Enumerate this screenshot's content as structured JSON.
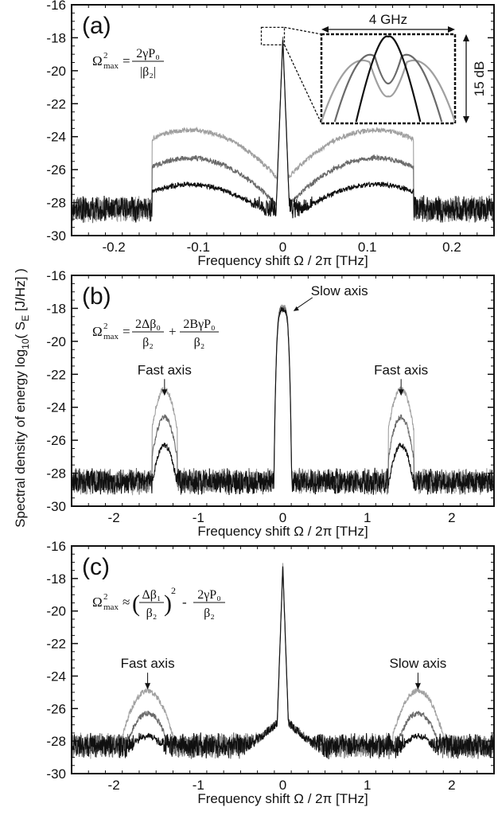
{
  "figure": {
    "ylabel_prefix": "Spectral density of energy log",
    "ylabel_sub": "10",
    "ylabel_open": "( S",
    "ylabel_sub2": "E",
    "ylabel_close": " [J/Hz] )"
  },
  "chart_data": [
    {
      "type": "line",
      "panel": "(a)",
      "xlabel": "Frequency shift Ω / 2π [THz]",
      "xlim": [
        -0.25,
        0.25
      ],
      "ylim": [
        -30,
        -16
      ],
      "xticks": [
        "-0.2",
        "-0.1",
        "0",
        "0.1",
        "0.2"
      ],
      "xtick_values": [
        -0.2,
        -0.1,
        0,
        0.1,
        0.2
      ],
      "yticks": [
        "-16",
        "-18",
        "-20",
        "-22",
        "-24",
        "-26",
        "-28",
        "-30"
      ],
      "grid": false,
      "formula": {
        "lhs": "Ω",
        "sup": "2",
        "sub": "max",
        "rel": "=",
        "terms": [
          {
            "num": "2γP₀",
            "den": "|β₂|"
          }
        ]
      },
      "series": [
        {
          "color": "#a0a0a0",
          "lobe_peak": -23.6,
          "lobe_center": 0.11,
          "lobe_width": 0.045,
          "cut": 0.155
        },
        {
          "color": "#6a6a6a",
          "lobe_peak": -25.3,
          "lobe_center": 0.11,
          "lobe_width": 0.045,
          "cut": 0.155
        },
        {
          "color": "#101010",
          "lobe_peak": -26.9,
          "lobe_center": 0.11,
          "lobe_width": 0.05,
          "cut": 0.155
        }
      ],
      "noise_floor": -28.4,
      "center_peak": -17.9,
      "center_width": 0.002,
      "inset": {
        "width_label": "4 GHz",
        "height_label": "15 dB"
      }
    },
    {
      "type": "line",
      "panel": "(b)",
      "xlabel": "Frequency shift Ω / 2π [THz]",
      "xlim": [
        -2.5,
        2.5
      ],
      "ylim": [
        -30,
        -16
      ],
      "xticks": [
        "-2",
        "-1",
        "0",
        "1",
        "2"
      ],
      "xtick_values": [
        -2,
        -1,
        0,
        1,
        2
      ],
      "yticks": [
        "-16",
        "-18",
        "-20",
        "-22",
        "-24",
        "-26",
        "-28",
        "-30"
      ],
      "grid": false,
      "formula": {
        "lhs": "Ω",
        "sup": "2",
        "sub": "max",
        "rel": "=",
        "terms": [
          {
            "num": "2Δβ₀",
            "den": "β₂"
          },
          {
            "op": "+",
            "num": "2BγP₀",
            "den": "β₂"
          }
        ]
      },
      "annotations": [
        {
          "text": "Fast axis",
          "x": -1.4,
          "label_y": -22.0
        },
        {
          "text": "Fast axis",
          "x": 1.4,
          "label_y": -22.0
        },
        {
          "text": "Slow axis",
          "x": 0.05,
          "label_y": -17.2
        }
      ],
      "series": [
        {
          "color": "#a0a0a0",
          "lobe_peak": -22.9,
          "lobe_center": 1.4,
          "lobe_width": 0.09,
          "cut": 0.15
        },
        {
          "color": "#6a6a6a",
          "lobe_peak": -24.6,
          "lobe_center": 1.4,
          "lobe_width": 0.09,
          "cut": 0.15
        },
        {
          "color": "#101010",
          "lobe_peak": -26.3,
          "lobe_center": 1.4,
          "lobe_width": 0.09,
          "cut": 0.15
        }
      ],
      "noise_floor": -28.5,
      "center_peak": -17.9,
      "center_width": 0.1
    },
    {
      "type": "line",
      "panel": "(c)",
      "xlabel": "Frequency shift Ω / 2π [THz]",
      "xlim": [
        -2.5,
        2.5
      ],
      "ylim": [
        -30,
        -16
      ],
      "xticks": [
        "-2",
        "-1",
        "0",
        "1",
        "2"
      ],
      "xtick_values": [
        -2,
        -1,
        0,
        1,
        2
      ],
      "yticks": [
        "-16",
        "-18",
        "-20",
        "-22",
        "-24",
        "-26",
        "-28",
        "-30"
      ],
      "grid": false,
      "formula": {
        "lhs": "Ω",
        "sup": "2",
        "sub": "max",
        "rel": "≈",
        "terms": [
          {
            "paren": true,
            "num": "Δβ₁",
            "den": "β₂",
            "pow": "2"
          },
          {
            "op": "-",
            "num": "2γP₀",
            "den": "β₂"
          }
        ]
      },
      "annotations": [
        {
          "text": "Fast axis",
          "x": -1.6,
          "label_y": -23.5
        },
        {
          "text": "Slow axis",
          "x": 1.6,
          "label_y": -23.5
        }
      ],
      "series": [
        {
          "color": "#a0a0a0",
          "lobe_peak": -24.9,
          "lobe_center": 1.6,
          "lobe_width": 0.17,
          "cut": 0.3
        },
        {
          "color": "#6a6a6a",
          "lobe_peak": -26.3,
          "lobe_center": 1.6,
          "lobe_width": 0.17,
          "cut": 0.3
        },
        {
          "color": "#101010",
          "lobe_peak": -27.7,
          "lobe_center": 1.6,
          "lobe_width": 0.2,
          "cut": 0.3
        }
      ],
      "noise_floor": -28.3,
      "center_peak": -17.1,
      "center_width": 0.018
    }
  ]
}
